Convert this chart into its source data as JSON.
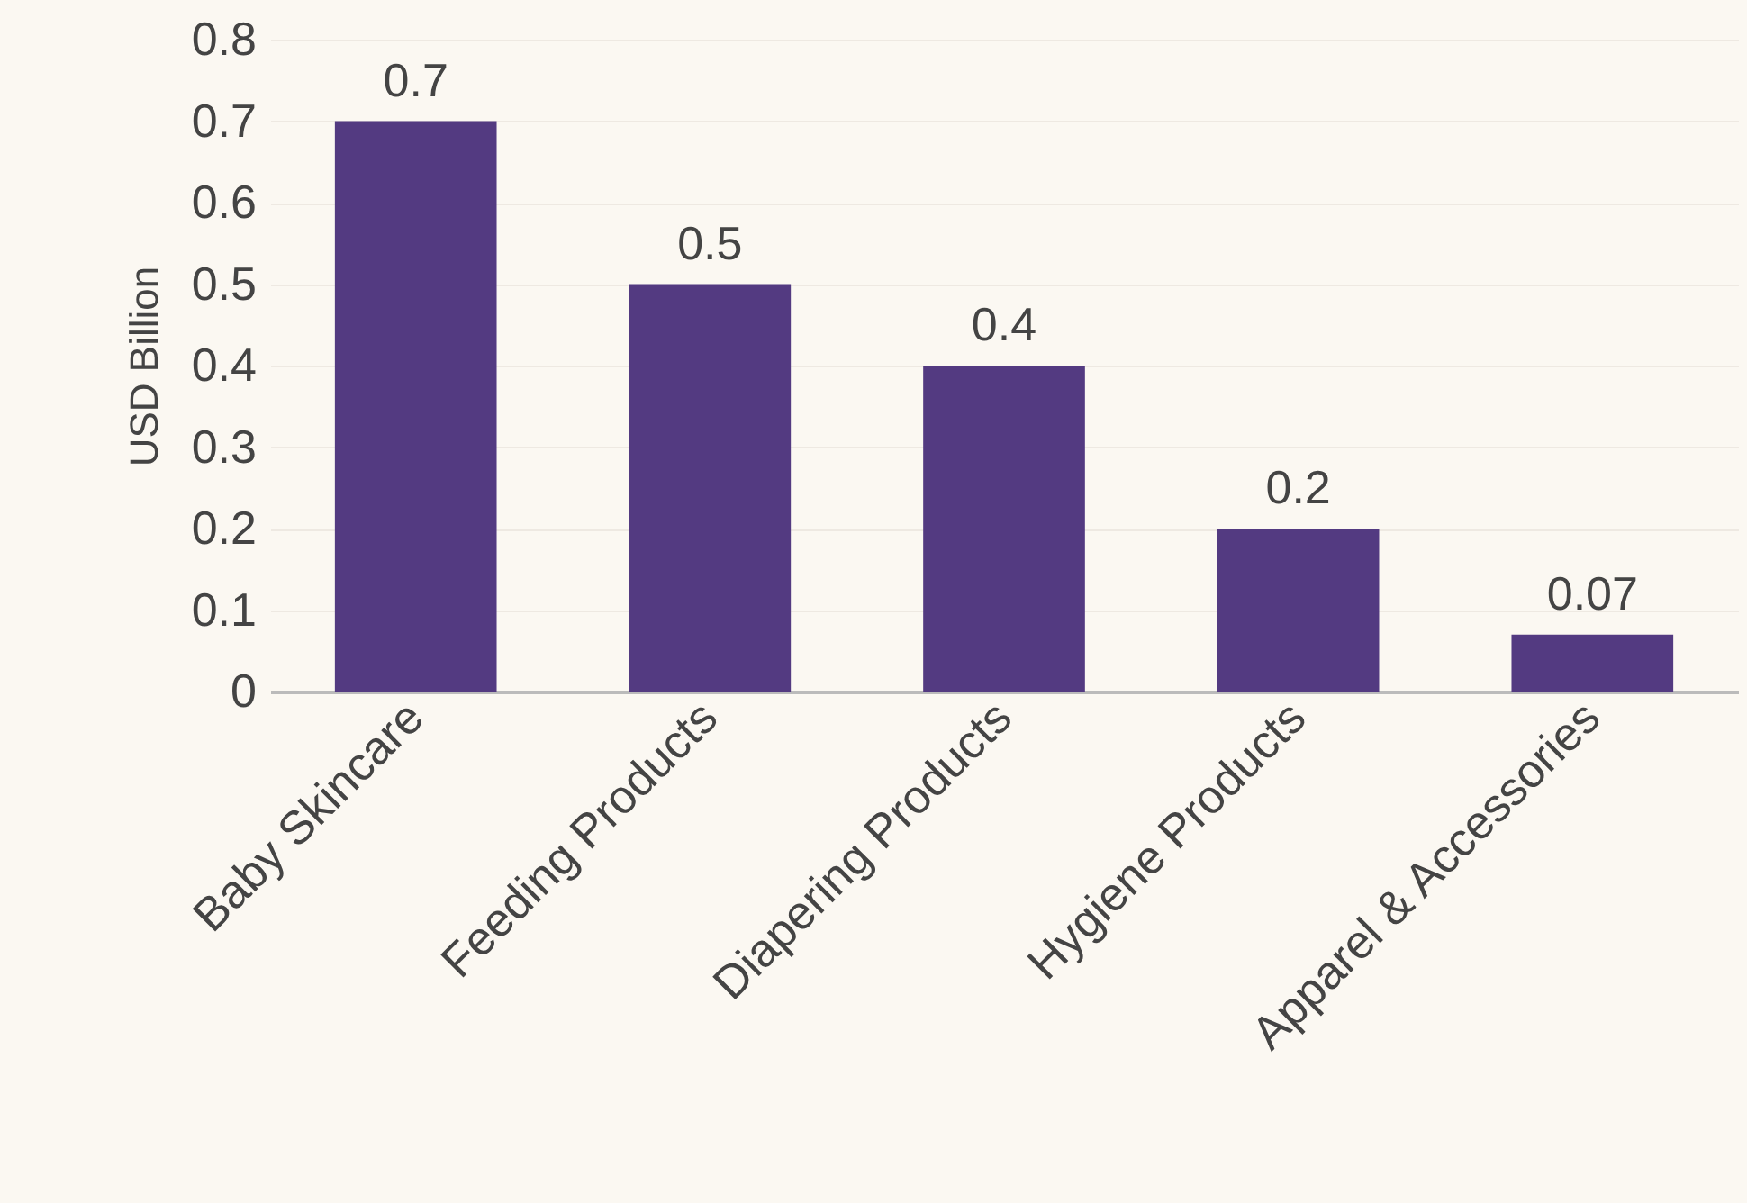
{
  "chart_data": {
    "type": "bar",
    "ylabel": "USD Billion",
    "categories": [
      "Baby Skincare",
      "Feeding Products",
      "Diapering Products",
      "Hygiene Products",
      "Apparel & Accessories"
    ],
    "values": [
      0.7,
      0.5,
      0.4,
      0.2,
      0.07
    ],
    "color": "#533a81",
    "ylim": [
      0,
      0.8
    ],
    "yticks": [
      0,
      0.1,
      0.2,
      0.3,
      0.4,
      0.5,
      0.6,
      0.7,
      0.8
    ],
    "grid": "y",
    "data_labels": true
  }
}
